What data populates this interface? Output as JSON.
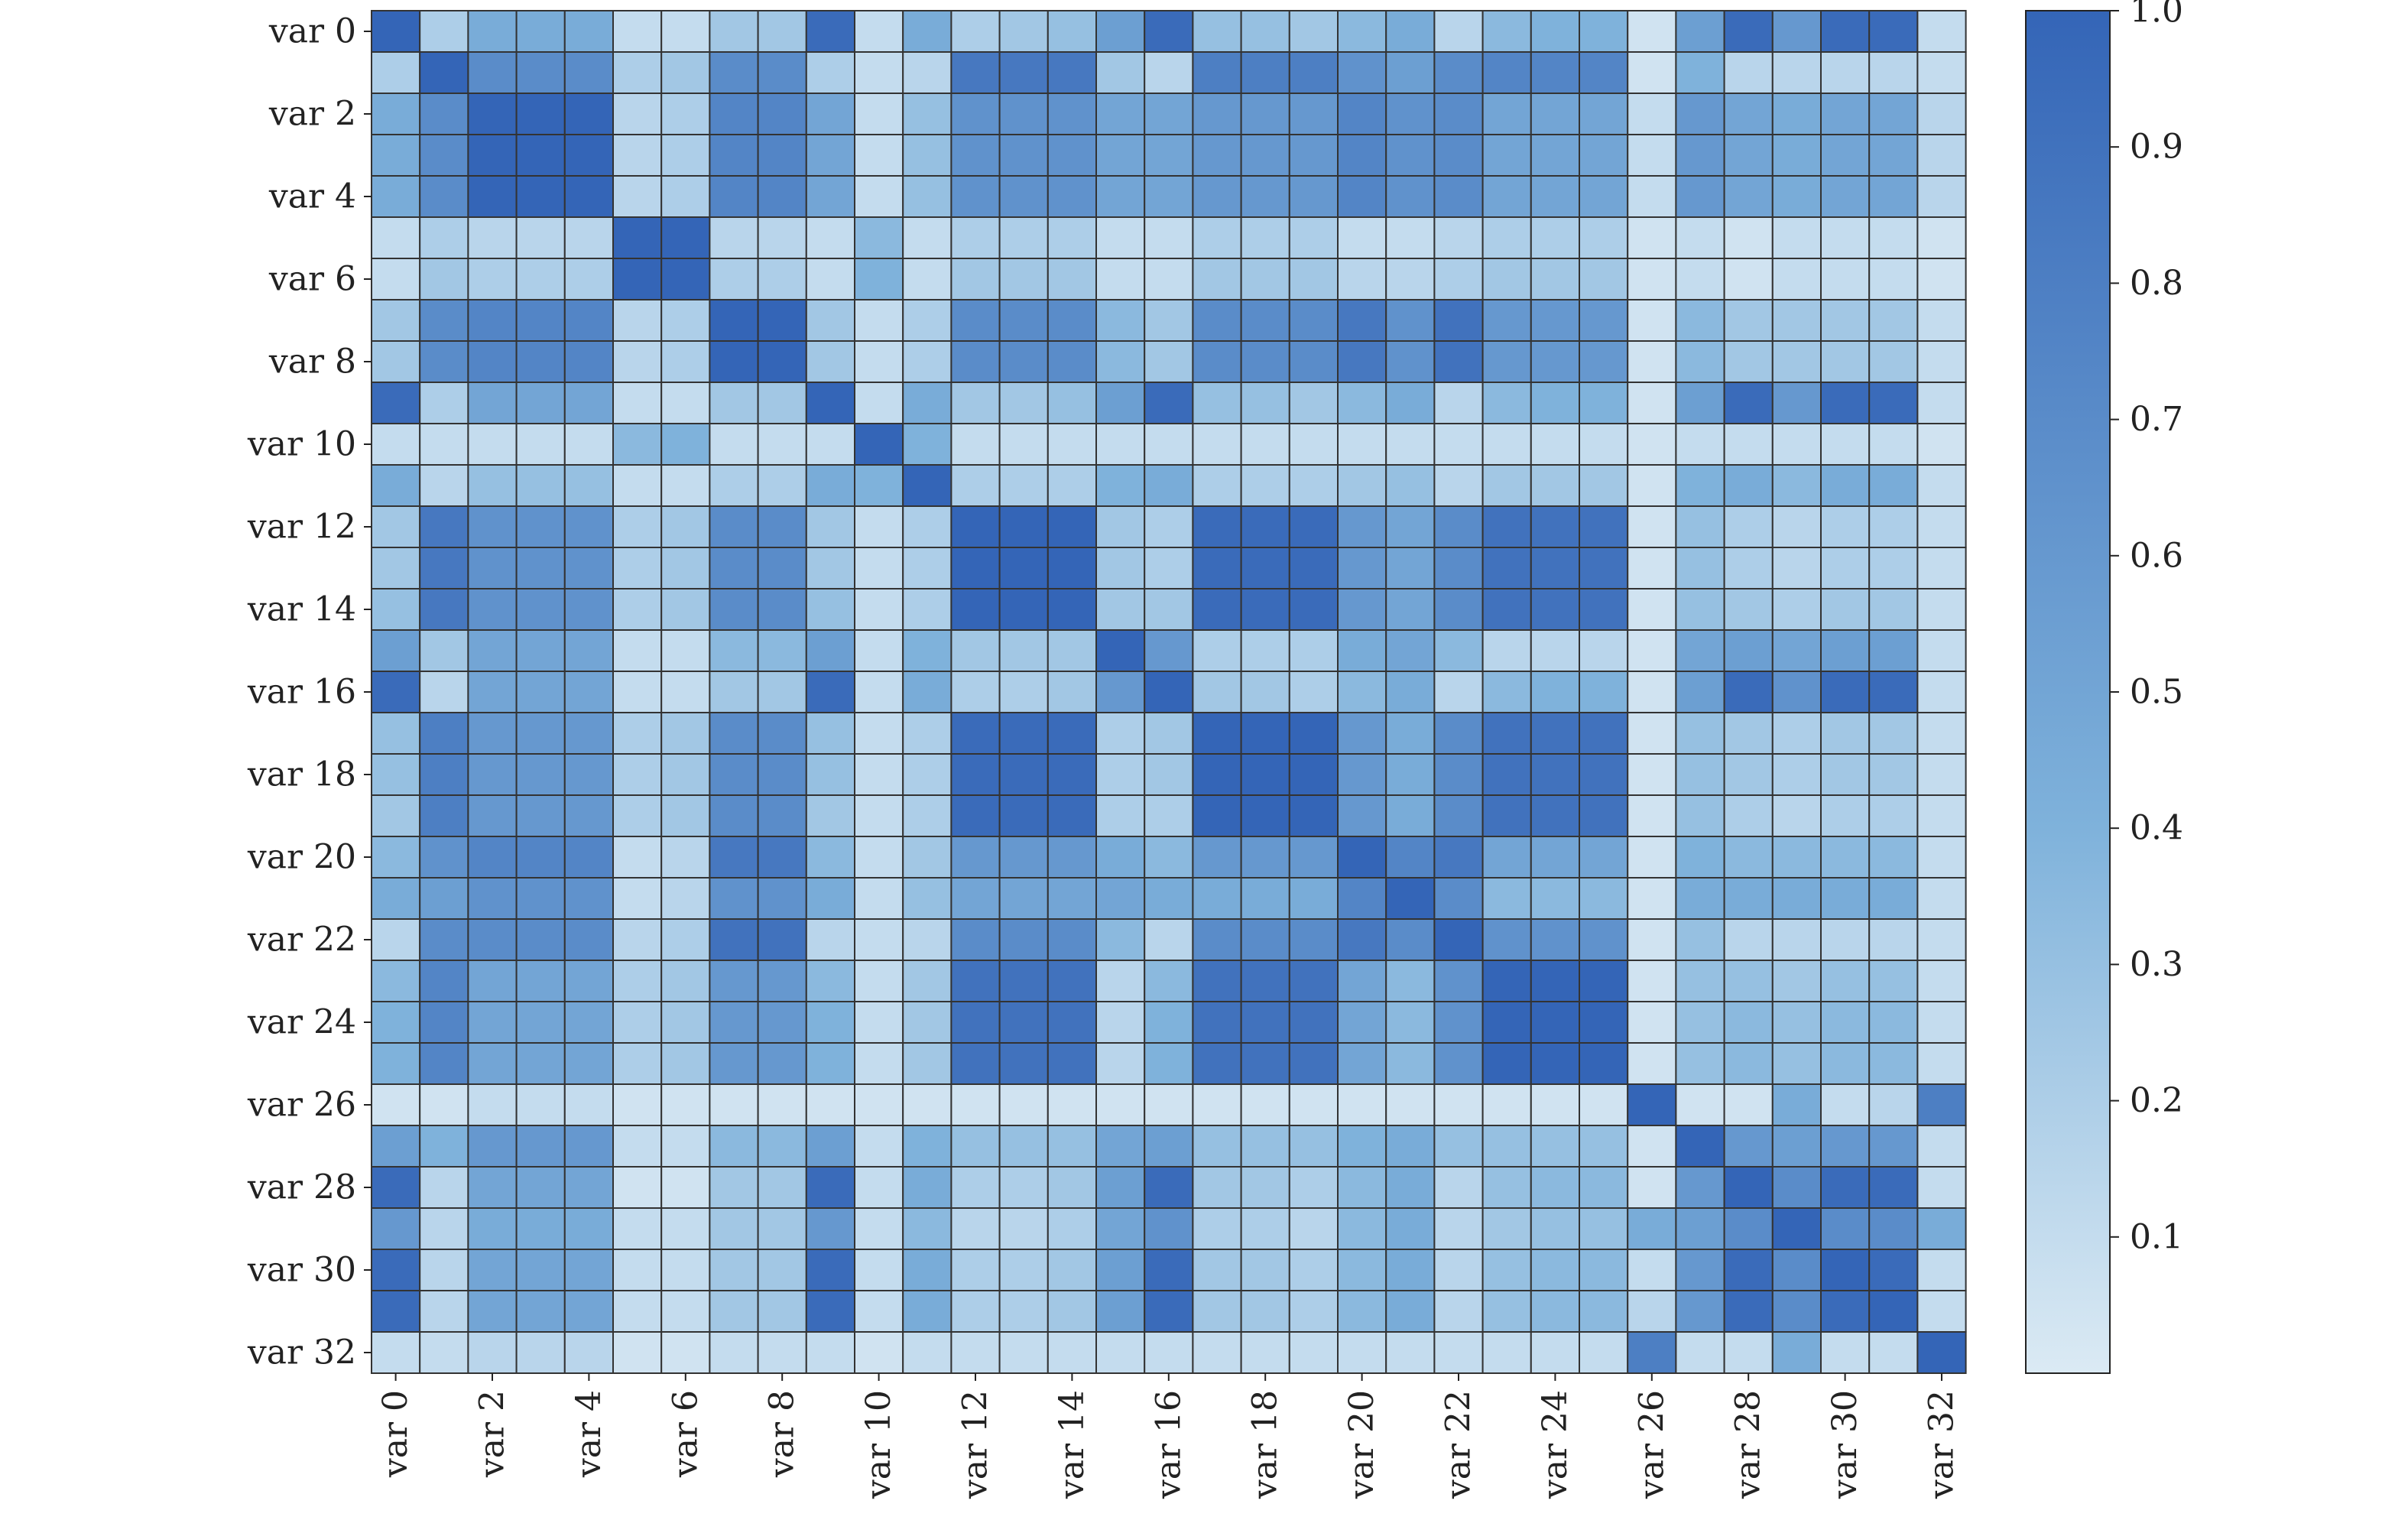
{
  "chart_data": {
    "type": "heatmap",
    "title": "",
    "xlabel": "",
    "ylabel": "",
    "variables": [
      "var 0",
      "var 1",
      "var 2",
      "var 3",
      "var 4",
      "var 5",
      "var 6",
      "var 7",
      "var 8",
      "var 9",
      "var 10",
      "var 11",
      "var 12",
      "var 13",
      "var 14",
      "var 15",
      "var 16",
      "var 17",
      "var 18",
      "var 19",
      "var 20",
      "var 21",
      "var 22",
      "var 23",
      "var 24",
      "var 25",
      "var 26",
      "var 27",
      "var 28",
      "var 29",
      "var 30",
      "var 31",
      "var 32"
    ],
    "tick_labels": [
      "var 0",
      "var 2",
      "var 4",
      "var 6",
      "var 8",
      "var 10",
      "var 12",
      "var 14",
      "var 16",
      "var 18",
      "var 20",
      "var 22",
      "var 24",
      "var 26",
      "var 28",
      "var 30",
      "var 32"
    ],
    "value_range": [
      0,
      1
    ],
    "colormap": {
      "low": "#dbeaf4",
      "mid": "#7fb2db",
      "high": "#3465b7"
    },
    "grid_line_color": "#333333",
    "colorbar": {
      "ticks": [
        0.1,
        0.2,
        0.3,
        0.4,
        0.5,
        0.6,
        0.7,
        0.8,
        0.9,
        1.0
      ],
      "labels": [
        "0.1",
        "0.2",
        "0.3",
        "0.4",
        "0.5",
        "0.6",
        "0.7",
        "0.8",
        "0.9",
        "1.0"
      ],
      "range": [
        0.0,
        1.0
      ]
    },
    "legend": "right (colorbar)",
    "matrix_values": [
      [
        1.0,
        0.2,
        0.45,
        0.45,
        0.45,
        0.1,
        0.1,
        0.25,
        0.25,
        0.95,
        0.1,
        0.45,
        0.2,
        0.25,
        0.3,
        0.55,
        0.95,
        0.3,
        0.3,
        0.25,
        0.35,
        0.45,
        0.15,
        0.35,
        0.4,
        0.4,
        0.05,
        0.55,
        0.95,
        0.6,
        0.95,
        0.95,
        0.1
      ],
      [
        0.2,
        1.0,
        0.7,
        0.7,
        0.7,
        0.2,
        0.25,
        0.7,
        0.7,
        0.2,
        0.1,
        0.15,
        0.85,
        0.85,
        0.85,
        0.25,
        0.15,
        0.8,
        0.8,
        0.8,
        0.65,
        0.55,
        0.7,
        0.75,
        0.75,
        0.75,
        0.05,
        0.4,
        0.15,
        0.15,
        0.15,
        0.15,
        0.1
      ],
      [
        0.45,
        0.7,
        1.0,
        1.0,
        1.0,
        0.15,
        0.2,
        0.75,
        0.75,
        0.5,
        0.1,
        0.3,
        0.65,
        0.65,
        0.65,
        0.5,
        0.5,
        0.6,
        0.6,
        0.6,
        0.75,
        0.65,
        0.7,
        0.5,
        0.5,
        0.5,
        0.1,
        0.6,
        0.5,
        0.45,
        0.5,
        0.5,
        0.15
      ],
      [
        0.45,
        0.7,
        1.0,
        1.0,
        1.0,
        0.15,
        0.2,
        0.75,
        0.75,
        0.5,
        0.1,
        0.3,
        0.65,
        0.65,
        0.65,
        0.5,
        0.5,
        0.6,
        0.6,
        0.6,
        0.75,
        0.65,
        0.7,
        0.5,
        0.5,
        0.5,
        0.1,
        0.6,
        0.5,
        0.45,
        0.5,
        0.5,
        0.15
      ],
      [
        0.45,
        0.7,
        1.0,
        1.0,
        1.0,
        0.15,
        0.2,
        0.75,
        0.75,
        0.5,
        0.1,
        0.3,
        0.65,
        0.65,
        0.65,
        0.5,
        0.5,
        0.6,
        0.6,
        0.6,
        0.75,
        0.65,
        0.7,
        0.5,
        0.5,
        0.5,
        0.1,
        0.6,
        0.5,
        0.45,
        0.5,
        0.5,
        0.15
      ],
      [
        0.1,
        0.2,
        0.15,
        0.15,
        0.15,
        1.0,
        1.0,
        0.15,
        0.15,
        0.1,
        0.35,
        0.1,
        0.2,
        0.2,
        0.2,
        0.1,
        0.1,
        0.2,
        0.2,
        0.2,
        0.1,
        0.1,
        0.15,
        0.2,
        0.2,
        0.2,
        0.05,
        0.1,
        0.05,
        0.1,
        0.1,
        0.1,
        0.05
      ],
      [
        0.1,
        0.25,
        0.2,
        0.2,
        0.2,
        1.0,
        1.0,
        0.2,
        0.2,
        0.1,
        0.4,
        0.1,
        0.25,
        0.25,
        0.25,
        0.1,
        0.1,
        0.25,
        0.25,
        0.25,
        0.15,
        0.15,
        0.2,
        0.25,
        0.25,
        0.25,
        0.05,
        0.1,
        0.05,
        0.1,
        0.1,
        0.1,
        0.05
      ],
      [
        0.25,
        0.7,
        0.75,
        0.75,
        0.75,
        0.15,
        0.2,
        1.0,
        1.0,
        0.25,
        0.1,
        0.2,
        0.7,
        0.7,
        0.7,
        0.35,
        0.25,
        0.7,
        0.7,
        0.7,
        0.85,
        0.65,
        0.9,
        0.6,
        0.6,
        0.6,
        0.05,
        0.35,
        0.25,
        0.25,
        0.25,
        0.25,
        0.1
      ],
      [
        0.25,
        0.7,
        0.75,
        0.75,
        0.75,
        0.15,
        0.2,
        1.0,
        1.0,
        0.25,
        0.1,
        0.2,
        0.7,
        0.7,
        0.7,
        0.35,
        0.25,
        0.7,
        0.7,
        0.7,
        0.85,
        0.65,
        0.9,
        0.6,
        0.6,
        0.6,
        0.05,
        0.35,
        0.25,
        0.25,
        0.25,
        0.25,
        0.1
      ],
      [
        0.95,
        0.2,
        0.5,
        0.5,
        0.5,
        0.1,
        0.1,
        0.25,
        0.25,
        1.0,
        0.1,
        0.45,
        0.25,
        0.25,
        0.3,
        0.55,
        0.95,
        0.3,
        0.3,
        0.25,
        0.35,
        0.45,
        0.15,
        0.35,
        0.4,
        0.4,
        0.05,
        0.55,
        0.95,
        0.6,
        0.95,
        0.95,
        0.1
      ],
      [
        0.1,
        0.1,
        0.1,
        0.1,
        0.1,
        0.35,
        0.4,
        0.1,
        0.1,
        0.1,
        1.0,
        0.4,
        0.1,
        0.1,
        0.1,
        0.1,
        0.1,
        0.1,
        0.1,
        0.1,
        0.1,
        0.1,
        0.1,
        0.1,
        0.1,
        0.1,
        0.05,
        0.1,
        0.1,
        0.1,
        0.1,
        0.1,
        0.05
      ],
      [
        0.45,
        0.15,
        0.3,
        0.3,
        0.3,
        0.1,
        0.1,
        0.2,
        0.2,
        0.45,
        0.4,
        1.0,
        0.2,
        0.2,
        0.2,
        0.4,
        0.45,
        0.2,
        0.2,
        0.2,
        0.25,
        0.3,
        0.15,
        0.25,
        0.25,
        0.25,
        0.05,
        0.4,
        0.45,
        0.35,
        0.45,
        0.45,
        0.1
      ],
      [
        0.25,
        0.85,
        0.65,
        0.65,
        0.65,
        0.2,
        0.25,
        0.7,
        0.7,
        0.25,
        0.1,
        0.2,
        1.0,
        1.0,
        1.0,
        0.25,
        0.2,
        0.95,
        0.95,
        0.95,
        0.6,
        0.5,
        0.7,
        0.9,
        0.9,
        0.9,
        0.05,
        0.3,
        0.2,
        0.15,
        0.2,
        0.2,
        0.1
      ],
      [
        0.25,
        0.85,
        0.65,
        0.65,
        0.65,
        0.2,
        0.25,
        0.7,
        0.7,
        0.25,
        0.1,
        0.2,
        1.0,
        1.0,
        1.0,
        0.25,
        0.2,
        0.95,
        0.95,
        0.95,
        0.6,
        0.5,
        0.7,
        0.9,
        0.9,
        0.9,
        0.05,
        0.3,
        0.2,
        0.15,
        0.2,
        0.2,
        0.1
      ],
      [
        0.3,
        0.85,
        0.65,
        0.65,
        0.65,
        0.2,
        0.25,
        0.7,
        0.7,
        0.3,
        0.1,
        0.2,
        1.0,
        1.0,
        1.0,
        0.25,
        0.25,
        0.95,
        0.95,
        0.95,
        0.6,
        0.5,
        0.7,
        0.9,
        0.9,
        0.9,
        0.05,
        0.3,
        0.25,
        0.2,
        0.25,
        0.25,
        0.1
      ],
      [
        0.55,
        0.25,
        0.5,
        0.5,
        0.5,
        0.1,
        0.1,
        0.35,
        0.35,
        0.55,
        0.1,
        0.4,
        0.25,
        0.25,
        0.25,
        1.0,
        0.6,
        0.2,
        0.2,
        0.2,
        0.45,
        0.5,
        0.35,
        0.15,
        0.15,
        0.15,
        0.05,
        0.5,
        0.55,
        0.5,
        0.55,
        0.55,
        0.1
      ],
      [
        0.95,
        0.15,
        0.5,
        0.5,
        0.5,
        0.1,
        0.1,
        0.25,
        0.25,
        0.95,
        0.1,
        0.45,
        0.2,
        0.2,
        0.25,
        0.6,
        1.0,
        0.25,
        0.25,
        0.2,
        0.35,
        0.45,
        0.15,
        0.35,
        0.4,
        0.4,
        0.05,
        0.55,
        0.95,
        0.65,
        0.95,
        0.95,
        0.1
      ],
      [
        0.3,
        0.8,
        0.6,
        0.6,
        0.6,
        0.2,
        0.25,
        0.7,
        0.7,
        0.3,
        0.1,
        0.2,
        0.95,
        0.95,
        0.95,
        0.2,
        0.25,
        1.0,
        1.0,
        1.0,
        0.6,
        0.45,
        0.7,
        0.9,
        0.9,
        0.9,
        0.05,
        0.3,
        0.25,
        0.2,
        0.25,
        0.25,
        0.1
      ],
      [
        0.3,
        0.8,
        0.6,
        0.6,
        0.6,
        0.2,
        0.25,
        0.7,
        0.7,
        0.3,
        0.1,
        0.2,
        0.95,
        0.95,
        0.95,
        0.2,
        0.25,
        1.0,
        1.0,
        1.0,
        0.6,
        0.45,
        0.7,
        0.9,
        0.9,
        0.9,
        0.05,
        0.3,
        0.25,
        0.2,
        0.25,
        0.25,
        0.1
      ],
      [
        0.25,
        0.8,
        0.6,
        0.6,
        0.6,
        0.2,
        0.25,
        0.7,
        0.7,
        0.25,
        0.1,
        0.2,
        0.95,
        0.95,
        0.95,
        0.2,
        0.2,
        1.0,
        1.0,
        1.0,
        0.6,
        0.45,
        0.7,
        0.9,
        0.9,
        0.9,
        0.05,
        0.3,
        0.2,
        0.15,
        0.2,
        0.2,
        0.1
      ],
      [
        0.35,
        0.65,
        0.75,
        0.75,
        0.75,
        0.1,
        0.15,
        0.85,
        0.85,
        0.35,
        0.1,
        0.25,
        0.6,
        0.6,
        0.6,
        0.45,
        0.35,
        0.6,
        0.6,
        0.6,
        1.0,
        0.75,
        0.85,
        0.5,
        0.5,
        0.5,
        0.05,
        0.4,
        0.35,
        0.35,
        0.35,
        0.35,
        0.1
      ],
      [
        0.45,
        0.55,
        0.65,
        0.65,
        0.65,
        0.1,
        0.15,
        0.65,
        0.65,
        0.45,
        0.1,
        0.3,
        0.5,
        0.5,
        0.5,
        0.5,
        0.45,
        0.45,
        0.45,
        0.45,
        0.75,
        1.0,
        0.7,
        0.35,
        0.35,
        0.35,
        0.05,
        0.45,
        0.45,
        0.45,
        0.45,
        0.45,
        0.1
      ],
      [
        0.15,
        0.7,
        0.7,
        0.7,
        0.7,
        0.15,
        0.2,
        0.9,
        0.9,
        0.15,
        0.1,
        0.15,
        0.7,
        0.7,
        0.7,
        0.35,
        0.15,
        0.7,
        0.7,
        0.7,
        0.85,
        0.7,
        1.0,
        0.65,
        0.65,
        0.65,
        0.05,
        0.3,
        0.15,
        0.15,
        0.15,
        0.15,
        0.1
      ],
      [
        0.35,
        0.75,
        0.5,
        0.5,
        0.5,
        0.2,
        0.25,
        0.6,
        0.6,
        0.35,
        0.1,
        0.25,
        0.9,
        0.9,
        0.9,
        0.15,
        0.35,
        0.9,
        0.9,
        0.9,
        0.5,
        0.35,
        0.65,
        1.0,
        1.0,
        1.0,
        0.05,
        0.3,
        0.3,
        0.25,
        0.3,
        0.3,
        0.1
      ],
      [
        0.4,
        0.75,
        0.5,
        0.5,
        0.5,
        0.2,
        0.25,
        0.6,
        0.6,
        0.4,
        0.1,
        0.25,
        0.9,
        0.9,
        0.9,
        0.15,
        0.4,
        0.9,
        0.9,
        0.9,
        0.5,
        0.35,
        0.65,
        1.0,
        1.0,
        1.0,
        0.05,
        0.3,
        0.35,
        0.3,
        0.35,
        0.35,
        0.1
      ],
      [
        0.4,
        0.75,
        0.5,
        0.5,
        0.5,
        0.2,
        0.25,
        0.6,
        0.6,
        0.4,
        0.1,
        0.25,
        0.9,
        0.9,
        0.9,
        0.15,
        0.4,
        0.9,
        0.9,
        0.9,
        0.5,
        0.35,
        0.65,
        1.0,
        1.0,
        1.0,
        0.05,
        0.3,
        0.35,
        0.3,
        0.35,
        0.35,
        0.1
      ],
      [
        0.05,
        0.05,
        0.1,
        0.1,
        0.1,
        0.05,
        0.05,
        0.05,
        0.05,
        0.05,
        0.05,
        0.05,
        0.05,
        0.05,
        0.05,
        0.05,
        0.05,
        0.05,
        0.05,
        0.05,
        0.05,
        0.05,
        0.05,
        0.05,
        0.05,
        0.05,
        1.0,
        0.05,
        0.05,
        0.45,
        0.1,
        0.15,
        0.8
      ],
      [
        0.55,
        0.4,
        0.6,
        0.6,
        0.6,
        0.1,
        0.1,
        0.35,
        0.35,
        0.55,
        0.1,
        0.4,
        0.3,
        0.3,
        0.3,
        0.5,
        0.55,
        0.3,
        0.3,
        0.3,
        0.4,
        0.45,
        0.3,
        0.3,
        0.3,
        0.3,
        0.05,
        1.0,
        0.6,
        0.55,
        0.6,
        0.6,
        0.1
      ],
      [
        0.95,
        0.15,
        0.5,
        0.5,
        0.5,
        0.05,
        0.05,
        0.25,
        0.25,
        0.95,
        0.1,
        0.45,
        0.2,
        0.2,
        0.25,
        0.55,
        0.95,
        0.25,
        0.25,
        0.2,
        0.35,
        0.45,
        0.15,
        0.3,
        0.35,
        0.35,
        0.05,
        0.6,
        1.0,
        0.7,
        0.95,
        0.95,
        0.1
      ],
      [
        0.6,
        0.15,
        0.45,
        0.45,
        0.45,
        0.1,
        0.1,
        0.25,
        0.25,
        0.6,
        0.1,
        0.35,
        0.15,
        0.15,
        0.2,
        0.5,
        0.65,
        0.2,
        0.2,
        0.15,
        0.35,
        0.45,
        0.15,
        0.25,
        0.3,
        0.3,
        0.45,
        0.55,
        0.7,
        1.0,
        0.7,
        0.7,
        0.45
      ],
      [
        0.95,
        0.15,
        0.5,
        0.5,
        0.5,
        0.1,
        0.1,
        0.25,
        0.25,
        0.95,
        0.1,
        0.45,
        0.2,
        0.2,
        0.25,
        0.55,
        0.95,
        0.25,
        0.25,
        0.2,
        0.35,
        0.45,
        0.15,
        0.3,
        0.35,
        0.35,
        0.1,
        0.6,
        0.95,
        0.7,
        1.0,
        0.95,
        0.1
      ],
      [
        0.95,
        0.15,
        0.5,
        0.5,
        0.5,
        0.1,
        0.1,
        0.25,
        0.25,
        0.95,
        0.1,
        0.45,
        0.2,
        0.2,
        0.25,
        0.55,
        0.95,
        0.25,
        0.25,
        0.2,
        0.35,
        0.45,
        0.15,
        0.3,
        0.35,
        0.35,
        0.15,
        0.6,
        0.95,
        0.7,
        0.95,
        1.0,
        0.1
      ],
      [
        0.1,
        0.1,
        0.15,
        0.15,
        0.15,
        0.05,
        0.05,
        0.1,
        0.1,
        0.1,
        0.05,
        0.1,
        0.1,
        0.1,
        0.1,
        0.1,
        0.1,
        0.1,
        0.1,
        0.1,
        0.1,
        0.1,
        0.1,
        0.1,
        0.1,
        0.1,
        0.8,
        0.1,
        0.1,
        0.45,
        0.1,
        0.1,
        1.0
      ]
    ]
  }
}
